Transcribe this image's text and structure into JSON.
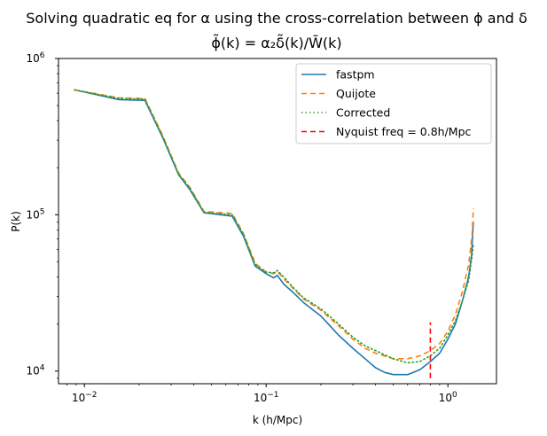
{
  "chart_data": {
    "type": "line",
    "title_line1": "Solving quadratic eq for α using the cross-correlation between ϕ and δ",
    "title_line2": "ϕ̃(k) = α₂δ̃(k)/W̃(k)",
    "xlabel": "k (h/Mpc)",
    "ylabel": "P(k)",
    "xscale": "log",
    "yscale": "log",
    "xlim": [
      0.0072,
      1.85
    ],
    "ylim": [
      8300,
      1000000
    ],
    "x_ticks": [
      {
        "value": 0.01,
        "base": "10",
        "exp": "−2"
      },
      {
        "value": 0.1,
        "base": "10",
        "exp": "−1"
      },
      {
        "value": 1,
        "base": "10",
        "exp": "0"
      }
    ],
    "y_ticks": [
      {
        "value": 10000,
        "base": "10",
        "exp": "4"
      },
      {
        "value": 100000,
        "base": "10",
        "exp": "5"
      },
      {
        "value": 1000000,
        "base": "10",
        "exp": "6"
      }
    ],
    "grid": false,
    "legend_position": "top-right",
    "series": [
      {
        "name": "fastpm",
        "color": "#1f77b4",
        "dash": "solid",
        "points": [
          [
            0.0088,
            630000
          ],
          [
            0.0155,
            545000
          ],
          [
            0.0215,
            540000
          ],
          [
            0.027,
            310000
          ],
          [
            0.033,
            180000
          ],
          [
            0.038,
            145000
          ],
          [
            0.0455,
            103000
          ],
          [
            0.065,
            98000
          ],
          [
            0.075,
            73000
          ],
          [
            0.087,
            47000
          ],
          [
            0.1,
            42000
          ],
          [
            0.11,
            39500
          ],
          [
            0.115,
            41000
          ],
          [
            0.125,
            36000
          ],
          [
            0.14,
            32000
          ],
          [
            0.16,
            27500
          ],
          [
            0.2,
            22500
          ],
          [
            0.25,
            17000
          ],
          [
            0.3,
            14000
          ],
          [
            0.35,
            12000
          ],
          [
            0.4,
            10500
          ],
          [
            0.45,
            9800
          ],
          [
            0.5,
            9500
          ],
          [
            0.6,
            9500
          ],
          [
            0.7,
            10200
          ],
          [
            0.8,
            11500
          ],
          [
            0.9,
            13000
          ],
          [
            1.0,
            16000
          ],
          [
            1.1,
            20000
          ],
          [
            1.2,
            28000
          ],
          [
            1.3,
            40000
          ],
          [
            1.35,
            55000
          ],
          [
            1.38,
            90000
          ]
        ]
      },
      {
        "name": "Quijote",
        "color": "#ff7f0e",
        "dash": "dashed",
        "points": [
          [
            0.0088,
            630000
          ],
          [
            0.0155,
            560000
          ],
          [
            0.0215,
            555000
          ],
          [
            0.027,
            320000
          ],
          [
            0.033,
            185000
          ],
          [
            0.038,
            150000
          ],
          [
            0.0455,
            105000
          ],
          [
            0.065,
            102000
          ],
          [
            0.075,
            76000
          ],
          [
            0.087,
            49000
          ],
          [
            0.1,
            43000
          ],
          [
            0.11,
            42000
          ],
          [
            0.115,
            43500
          ],
          [
            0.125,
            39000
          ],
          [
            0.14,
            34000
          ],
          [
            0.16,
            29000
          ],
          [
            0.2,
            24500
          ],
          [
            0.25,
            19500
          ],
          [
            0.3,
            16000
          ],
          [
            0.35,
            14000
          ],
          [
            0.4,
            13000
          ],
          [
            0.5,
            12000
          ],
          [
            0.6,
            12000
          ],
          [
            0.7,
            12500
          ],
          [
            0.8,
            13500
          ],
          [
            0.9,
            15000
          ],
          [
            1.0,
            18000
          ],
          [
            1.1,
            23000
          ],
          [
            1.2,
            32000
          ],
          [
            1.3,
            48000
          ],
          [
            1.36,
            75000
          ],
          [
            1.38,
            110000
          ]
        ]
      },
      {
        "name": "Corrected",
        "color": "#2ca02c",
        "dash": "dotted",
        "points": [
          [
            0.0088,
            630000
          ],
          [
            0.0155,
            555000
          ],
          [
            0.0215,
            550000
          ],
          [
            0.027,
            315000
          ],
          [
            0.033,
            182000
          ],
          [
            0.038,
            148000
          ],
          [
            0.0455,
            104000
          ],
          [
            0.065,
            100000
          ],
          [
            0.075,
            75000
          ],
          [
            0.087,
            48000
          ],
          [
            0.1,
            43000
          ],
          [
            0.11,
            42500
          ],
          [
            0.115,
            44000
          ],
          [
            0.125,
            40000
          ],
          [
            0.14,
            34500
          ],
          [
            0.16,
            29500
          ],
          [
            0.2,
            25000
          ],
          [
            0.25,
            20000
          ],
          [
            0.3,
            16500
          ],
          [
            0.35,
            14500
          ],
          [
            0.4,
            13500
          ],
          [
            0.5,
            12000
          ],
          [
            0.6,
            11300
          ],
          [
            0.7,
            11500
          ],
          [
            0.8,
            12500
          ],
          [
            0.9,
            14000
          ],
          [
            1.0,
            17000
          ],
          [
            1.1,
            21000
          ],
          [
            1.2,
            28000
          ],
          [
            1.3,
            38000
          ],
          [
            1.36,
            55000
          ],
          [
            1.38,
            65000
          ]
        ]
      },
      {
        "name": "Nyquist freq = 0.8h/Mpc",
        "color": "#ff0000",
        "dash": "dashed",
        "points": [
          [
            0.8,
            9000
          ],
          [
            0.8,
            20500
          ]
        ]
      }
    ]
  }
}
